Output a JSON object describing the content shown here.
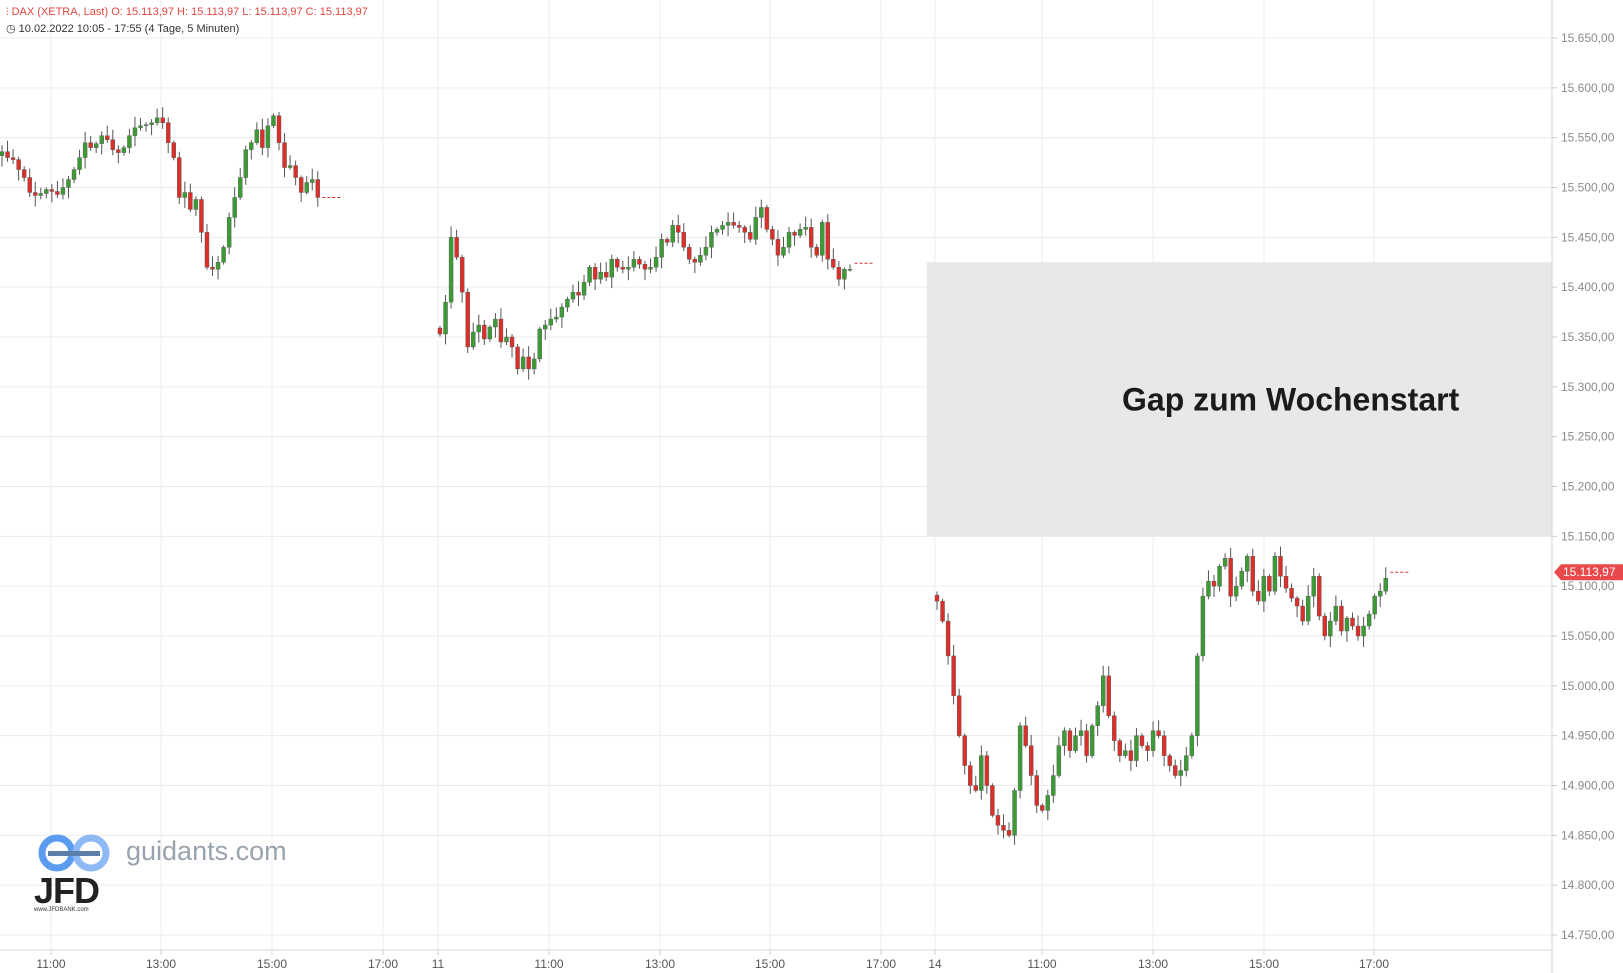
{
  "header": {
    "instrument_line": "DAX (XETRA, Last)  O: 15.113,97  H: 15.113,97  L: 15.113,97  C: 15.113,97",
    "range_line": "10.02.2022 10:05 - 17:55    (4 Tage, 5 Minuten)"
  },
  "branding": {
    "site": "guidants.com",
    "broker": "JFD",
    "broker_url": "www.JFDBANK.com"
  },
  "colors": {
    "up": "#3d9b35",
    "down": "#d9302b",
    "grid": "#ececec",
    "gap_zone": "#e8e8e8",
    "price_label_bg": "#e8494a"
  },
  "chart_data": {
    "type": "candlestick",
    "ylim": [
      14735,
      15665
    ],
    "y_ticks": [
      15650,
      15600,
      15550,
      15500,
      15450,
      15400,
      15350,
      15300,
      15250,
      15200,
      15150,
      15100,
      15050,
      15000,
      14950,
      14900,
      14850,
      14800,
      14750
    ],
    "y_tick_labels": [
      "15.650,00",
      "15.600,00",
      "15.550,00",
      "15.500,00",
      "15.450,00",
      "15.400,00",
      "15.350,00",
      "15.300,00",
      "15.250,00",
      "15.200,00",
      "15.150,00",
      "15.100,00",
      "15.050,00",
      "15.000,00",
      "14.950,00",
      "14.900,00",
      "14.850,00",
      "14.800,00",
      "14.750,00"
    ],
    "x_ticks": [
      "11:00",
      "13:00",
      "15:00",
      "17:00",
      "11",
      "11:00",
      "13:00",
      "15:00",
      "17:00",
      "14",
      "11:00",
      "13:00",
      "15:00",
      "17:00"
    ],
    "last_price": 15113.97,
    "last_price_label": "15.113,97",
    "annotation": {
      "text": "Gap zum Wochenstart",
      "zone_top": 15425,
      "zone_bottom": 15150
    },
    "sessions": [
      {
        "name": "10.02.",
        "closes": [
          15536,
          15530,
          15528,
          15518,
          15510,
          15495,
          15492,
          15494,
          15498,
          15496,
          15493,
          15500,
          15508,
          15518,
          15530,
          15545,
          15540,
          15544,
          15552,
          15548,
          15538,
          15535,
          15540,
          15552,
          15560,
          15562,
          15563,
          15565,
          15570,
          15565,
          15545,
          15530,
          15490,
          15495,
          15478,
          15488,
          15455,
          15420,
          15418,
          15425,
          15440,
          15470,
          15490,
          15510,
          15538,
          15545,
          15558,
          15540,
          15562,
          15572,
          15545,
          15520,
          15522,
          15510,
          15495,
          15505,
          15508,
          15490
        ],
        "after_close": 15490
      },
      {
        "name": "11.02.",
        "closes": [
          15353,
          15385,
          15450,
          15430,
          15395,
          15340,
          15355,
          15362,
          15348,
          15360,
          15368,
          15345,
          15350,
          15340,
          15318,
          15330,
          15318,
          15328,
          15358,
          15362,
          15368,
          15370,
          15380,
          15388,
          15395,
          15392,
          15405,
          15420,
          15408,
          15415,
          15410,
          15428,
          15420,
          15418,
          15420,
          15428,
          15423,
          15418,
          15420,
          15430,
          15448,
          15445,
          15462,
          15455,
          15440,
          15428,
          15425,
          15432,
          15440,
          15455,
          15458,
          15462,
          15465,
          15462,
          15460,
          15455,
          15448,
          15470,
          15480,
          15458,
          15448,
          15432,
          15440,
          15455,
          15452,
          15458,
          15460,
          15440,
          15432,
          15465,
          15428,
          15420,
          15408,
          15418,
          15418
        ],
        "after_close": 15424
      },
      {
        "name": "14.02.",
        "closes": [
          15085,
          15065,
          15030,
          14990,
          14950,
          14920,
          14900,
          14895,
          14930,
          14900,
          14870,
          14860,
          14855,
          14850,
          14895,
          14960,
          14940,
          14910,
          14880,
          14875,
          14890,
          14910,
          14940,
          14955,
          14935,
          14950,
          14955,
          14930,
          14960,
          14980,
          15010,
          14970,
          14945,
          14930,
          14935,
          14925,
          14950,
          14940,
          14935,
          14955,
          14950,
          14930,
          14920,
          14910,
          14915,
          14930,
          14950,
          15030,
          15090,
          15105,
          15100,
          15120,
          15128,
          15090,
          15100,
          15115,
          15130,
          15095,
          15085,
          15110,
          15095,
          15130,
          15110,
          15098,
          15088,
          15080,
          15065,
          15090,
          15110,
          15070,
          15050,
          15065,
          15080,
          15055,
          15068,
          15060,
          15050,
          15060,
          15072,
          15090,
          15095,
          15108
        ],
        "after_close": 15114
      }
    ]
  }
}
